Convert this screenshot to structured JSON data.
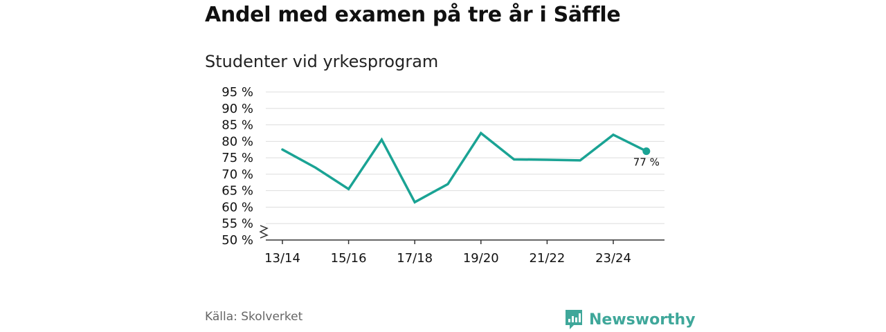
{
  "title": "Andel med examen på tre år i Säffle",
  "subtitle": "Studenter vid yrkesprogram",
  "source": "Källa: Skolverket",
  "brand": {
    "name": "Newsworthy",
    "icon": "bar-chart-logo-icon",
    "color": "#3fa79a"
  },
  "colors": {
    "line": "#1aa394",
    "grid": "#dddddd",
    "axis": "#333333"
  },
  "chart_data": {
    "type": "line",
    "title": "Andel med examen på tre år i Säffle",
    "subtitle": "Studenter vid yrkesprogram",
    "xlabel": "",
    "ylabel": "",
    "x": [
      "13/14",
      "14/15",
      "15/16",
      "16/17",
      "17/18",
      "18/19",
      "19/20",
      "20/21",
      "21/22",
      "22/23",
      "23/24",
      "24/25"
    ],
    "x_tick_labels": [
      "13/14",
      "15/16",
      "17/18",
      "19/20",
      "21/22",
      "23/24"
    ],
    "values": [
      77.5,
      72,
      65.5,
      80.5,
      61.5,
      67,
      82.5,
      74.5,
      74.4,
      74.2,
      82,
      77
    ],
    "y_ticks": [
      50,
      55,
      60,
      65,
      70,
      75,
      80,
      85,
      90,
      95
    ],
    "y_tick_labels": [
      "50 %",
      "55 %",
      "60 %",
      "65 %",
      "70 %",
      "75 %",
      "80 %",
      "85 %",
      "90 %",
      "95 %"
    ],
    "ylim": [
      50,
      95
    ],
    "axis_break": true,
    "grid": true,
    "last_value_label": "77 %"
  }
}
